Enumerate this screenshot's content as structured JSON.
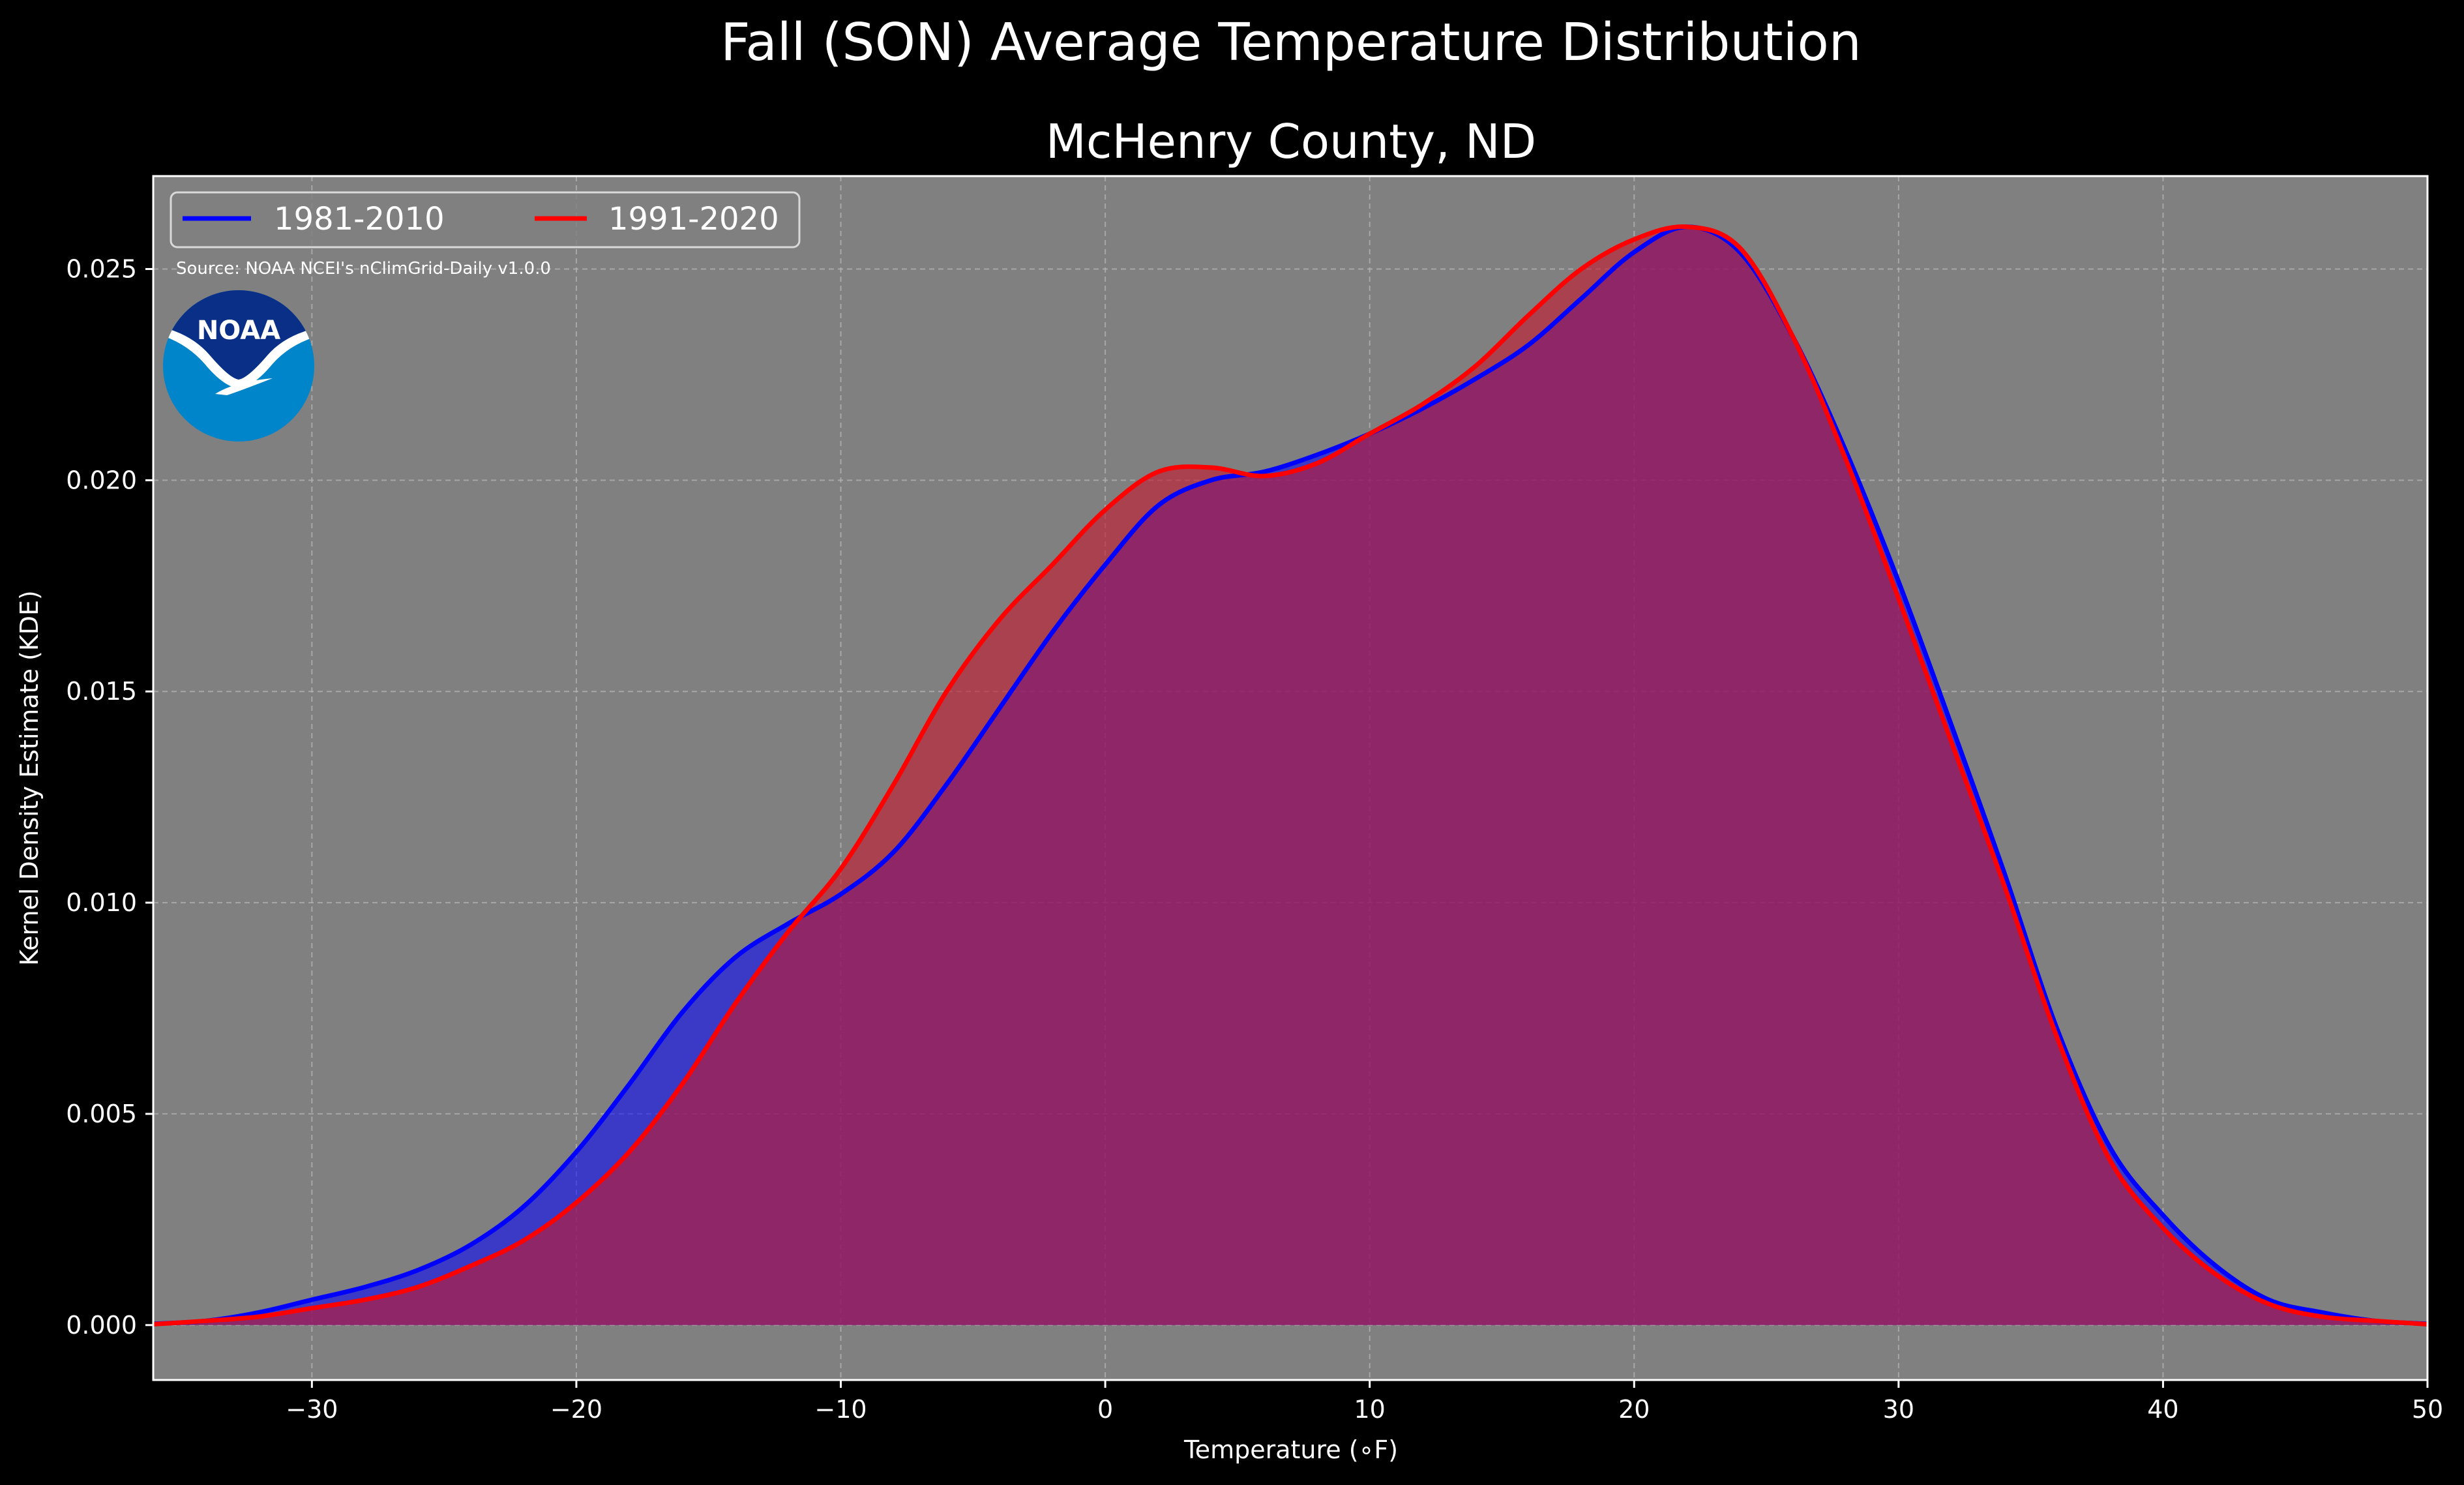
{
  "figure": {
    "title": "Fall (SON) Average Temperature Distribution",
    "background": "#000000",
    "plot_background": "#808080"
  },
  "source_note": "Source: NOAA NCEI's nClimGrid-Daily v1.0.0",
  "logo": {
    "text": "NOAA",
    "icon": "noaa-logo",
    "colors": {
      "top": "#0a2f87",
      "bottom": "#0085ca",
      "wave": "#ffffff"
    }
  },
  "chart_data": {
    "type": "area",
    "title": "McHenry County, ND",
    "xlabel": "Temperature ($^\\circ$F)",
    "xlabel_display": "Temperature (∘F)",
    "ylabel": "Kernel Density Estimate (KDE)",
    "xlim": [
      -36,
      50
    ],
    "ylim": [
      -0.0013,
      0.0272
    ],
    "xticks": [
      -30,
      -20,
      -10,
      0,
      10,
      20,
      30,
      40,
      50
    ],
    "xtick_labels": [
      "−30",
      "−20",
      "−10",
      "0",
      "10",
      "20",
      "30",
      "40",
      "50"
    ],
    "yticks": [
      0.0,
      0.005,
      0.01,
      0.015,
      0.02,
      0.025
    ],
    "ytick_labels": [
      "0.000",
      "0.005",
      "0.010",
      "0.015",
      "0.020",
      "0.025"
    ],
    "grid": true,
    "legend": {
      "position": "upper-left",
      "columns": 2
    },
    "series": [
      {
        "name": "1981-2010",
        "color": "#0000ff",
        "fill": "#0000ff",
        "x": [
          -36,
          -34,
          -32,
          -30,
          -28,
          -26,
          -24,
          -22,
          -20,
          -18,
          -16,
          -14,
          -12,
          -10,
          -8,
          -6,
          -4,
          -2,
          0,
          2,
          4,
          6,
          8,
          10,
          12,
          14,
          16,
          18,
          20,
          22,
          24,
          26,
          28,
          30,
          32,
          34,
          36,
          38,
          40,
          42,
          44,
          46,
          48,
          50
        ],
        "y": [
          3e-05,
          0.0001,
          0.0003,
          0.0006,
          0.0009,
          0.0013,
          0.0019,
          0.0028,
          0.0041,
          0.0057,
          0.0074,
          0.0087,
          0.0095,
          0.0102,
          0.0112,
          0.0128,
          0.0146,
          0.0164,
          0.018,
          0.0194,
          0.02,
          0.0202,
          0.0206,
          0.0211,
          0.0217,
          0.0224,
          0.0232,
          0.0243,
          0.0254,
          0.026,
          0.0254,
          0.0234,
          0.0207,
          0.0176,
          0.0142,
          0.0107,
          0.007,
          0.0042,
          0.0026,
          0.0014,
          0.0006,
          0.0003,
          0.0001,
          3e-05
        ]
      },
      {
        "name": "1991-2020",
        "color": "#ff0000",
        "fill": "#c41a2e",
        "x": [
          -36,
          -34,
          -32,
          -30,
          -28,
          -26,
          -24,
          -22,
          -20,
          -18,
          -16,
          -14,
          -12,
          -10,
          -8,
          -6,
          -4,
          -2,
          0,
          2,
          4,
          6,
          8,
          10,
          12,
          14,
          16,
          18,
          20,
          22,
          24,
          26,
          28,
          30,
          32,
          34,
          36,
          38,
          40,
          42,
          44,
          46,
          48,
          50
        ],
        "y": [
          2e-05,
          0.0001,
          0.0002,
          0.0004,
          0.0006,
          0.0009,
          0.0014,
          0.002,
          0.0029,
          0.0041,
          0.0057,
          0.0076,
          0.0093,
          0.0108,
          0.0128,
          0.015,
          0.0167,
          0.018,
          0.0193,
          0.0202,
          0.0203,
          0.0201,
          0.0204,
          0.0211,
          0.0218,
          0.0227,
          0.0239,
          0.025,
          0.0257,
          0.026,
          0.0255,
          0.0234,
          0.0205,
          0.0172,
          0.0138,
          0.0104,
          0.0068,
          0.0039,
          0.0023,
          0.0012,
          0.0005,
          0.0002,
          0.0001,
          2e-05
        ]
      }
    ]
  }
}
